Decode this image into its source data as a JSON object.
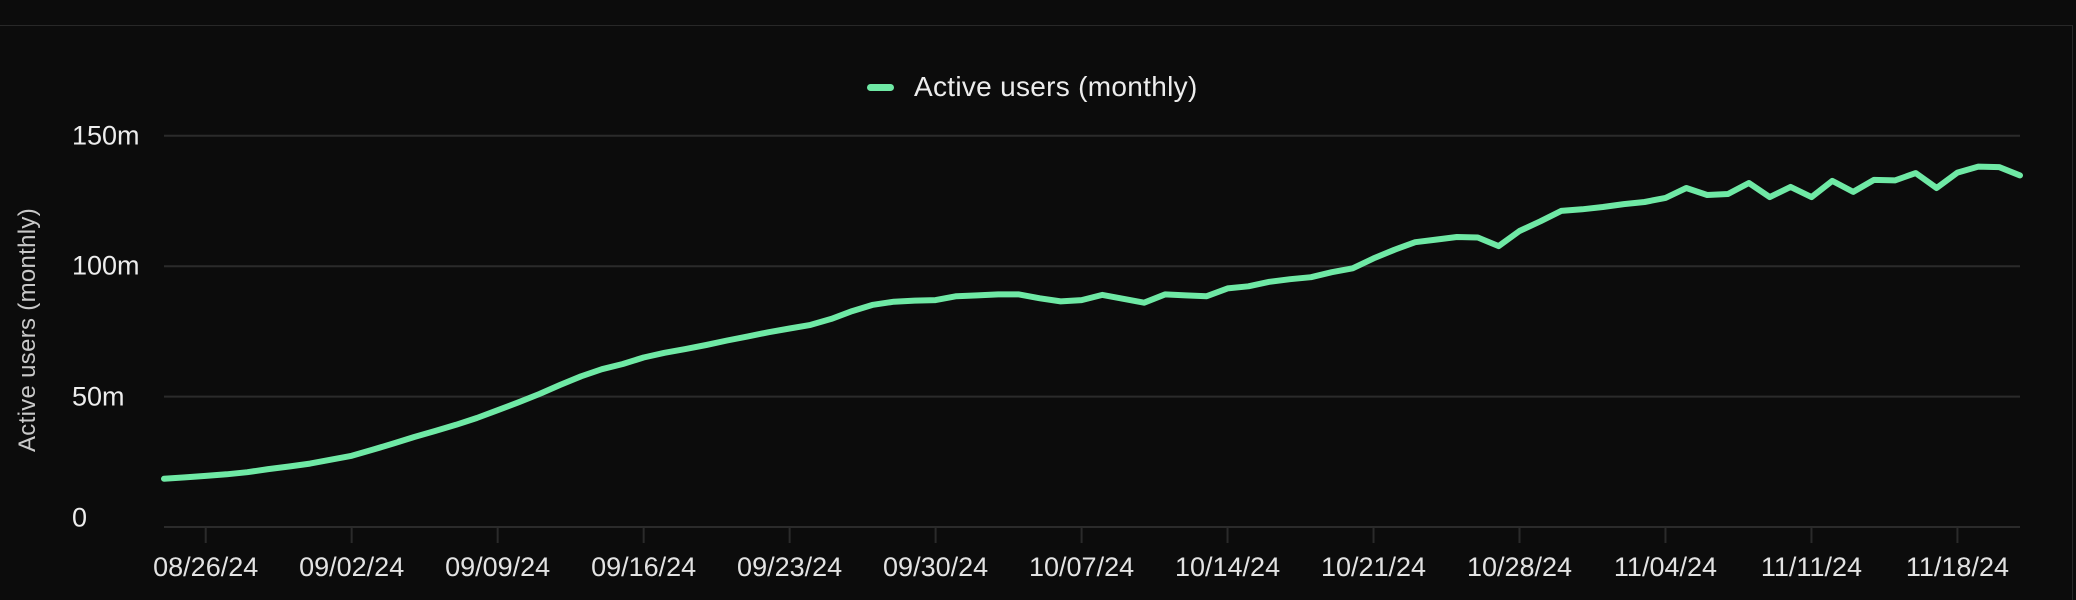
{
  "legend": {
    "label": "Active users (monthly)"
  },
  "colors": {
    "accent_line": "#6fe9a5",
    "grid": "#2b2b2b",
    "background": "#0c0c0c",
    "border": "#282828",
    "tick_text": "#e3e3e3",
    "axis_title_text": "#c9c9c9"
  },
  "chart_data": {
    "type": "line",
    "title": "",
    "xlabel": "",
    "ylabel": "Active users (monthly)",
    "ylim": [
      0,
      150
    ],
    "grid": "horizontal",
    "legend_position": "top-center",
    "line_color": "#6fe9a5",
    "y_ticks": [
      {
        "value": 0,
        "label": "0"
      },
      {
        "value": 50,
        "label": "50m"
      },
      {
        "value": 100,
        "label": "100m"
      },
      {
        "value": 150,
        "label": "150m"
      }
    ],
    "x_tick_labels": [
      "08/26/24",
      "09/02/24",
      "09/09/24",
      "09/16/24",
      "09/23/24",
      "09/30/24",
      "10/07/24",
      "10/14/24",
      "10/21/24",
      "10/28/24",
      "11/04/24",
      "11/11/24",
      "11/18/24"
    ],
    "series": [
      {
        "name": "Active users (monthly)",
        "x": [
          "08/24/24",
          "08/25/24",
          "08/26/24",
          "08/27/24",
          "08/28/24",
          "08/29/24",
          "08/30/24",
          "08/31/24",
          "09/01/24",
          "09/02/24",
          "09/03/24",
          "09/04/24",
          "09/05/24",
          "09/06/24",
          "09/07/24",
          "09/08/24",
          "09/09/24",
          "09/10/24",
          "09/11/24",
          "09/12/24",
          "09/13/24",
          "09/14/24",
          "09/15/24",
          "09/16/24",
          "09/17/24",
          "09/18/24",
          "09/19/24",
          "09/20/24",
          "09/21/24",
          "09/22/24",
          "09/23/24",
          "09/24/24",
          "09/25/24",
          "09/26/24",
          "09/27/24",
          "09/28/24",
          "09/29/24",
          "09/30/24",
          "10/01/24",
          "10/02/24",
          "10/03/24",
          "10/04/24",
          "10/05/24",
          "10/06/24",
          "10/07/24",
          "10/08/24",
          "10/09/24",
          "10/10/24",
          "10/11/24",
          "10/12/24",
          "10/13/24",
          "10/14/24",
          "10/15/24",
          "10/16/24",
          "10/17/24",
          "10/18/24",
          "10/19/24",
          "10/20/24",
          "10/21/24",
          "10/22/24",
          "10/23/24",
          "10/24/24",
          "10/25/24",
          "10/26/24",
          "10/27/24",
          "10/28/24",
          "10/29/24",
          "10/30/24",
          "10/31/24",
          "11/01/24",
          "11/02/24",
          "11/03/24",
          "11/04/24",
          "11/05/24",
          "11/06/24",
          "11/07/24",
          "11/08/24",
          "11/09/24",
          "11/10/24",
          "11/11/24",
          "11/12/24",
          "11/13/24",
          "11/14/24",
          "11/15/24",
          "11/16/24",
          "11/17/24",
          "11/18/24",
          "11/19/24",
          "11/20/24",
          "11/21/24"
        ],
        "values": [
          18.5,
          19.0,
          19.6,
          20.2,
          21.0,
          22.2,
          23.2,
          24.3,
          25.8,
          27.3,
          29.6,
          32.0,
          34.5,
          36.8,
          39.2,
          41.8,
          44.8,
          47.8,
          51.0,
          54.5,
          57.8,
          60.5,
          62.5,
          65.0,
          66.8,
          68.2,
          69.8,
          71.5,
          73.1,
          74.7,
          76.1,
          77.5,
          79.8,
          82.8,
          85.2,
          86.4,
          86.8,
          87.0,
          88.5,
          88.8,
          89.2,
          89.2,
          87.7,
          86.5,
          87.0,
          89.0,
          87.5,
          86.0,
          89.2,
          88.8,
          88.5,
          91.5,
          92.3,
          94.0,
          95.0,
          95.8,
          97.7,
          99.2,
          103.0,
          106.3,
          109.2,
          110.2,
          111.2,
          111.0,
          107.7,
          113.5,
          117.2,
          121.2,
          121.8,
          122.7,
          123.8,
          124.6,
          126.2,
          130.0,
          127.3,
          127.7,
          131.9,
          126.5,
          130.4,
          126.5,
          132.7,
          128.5,
          133.1,
          132.9,
          135.7,
          130.0,
          135.9,
          138.2,
          138.0,
          134.8
        ]
      }
    ]
  }
}
